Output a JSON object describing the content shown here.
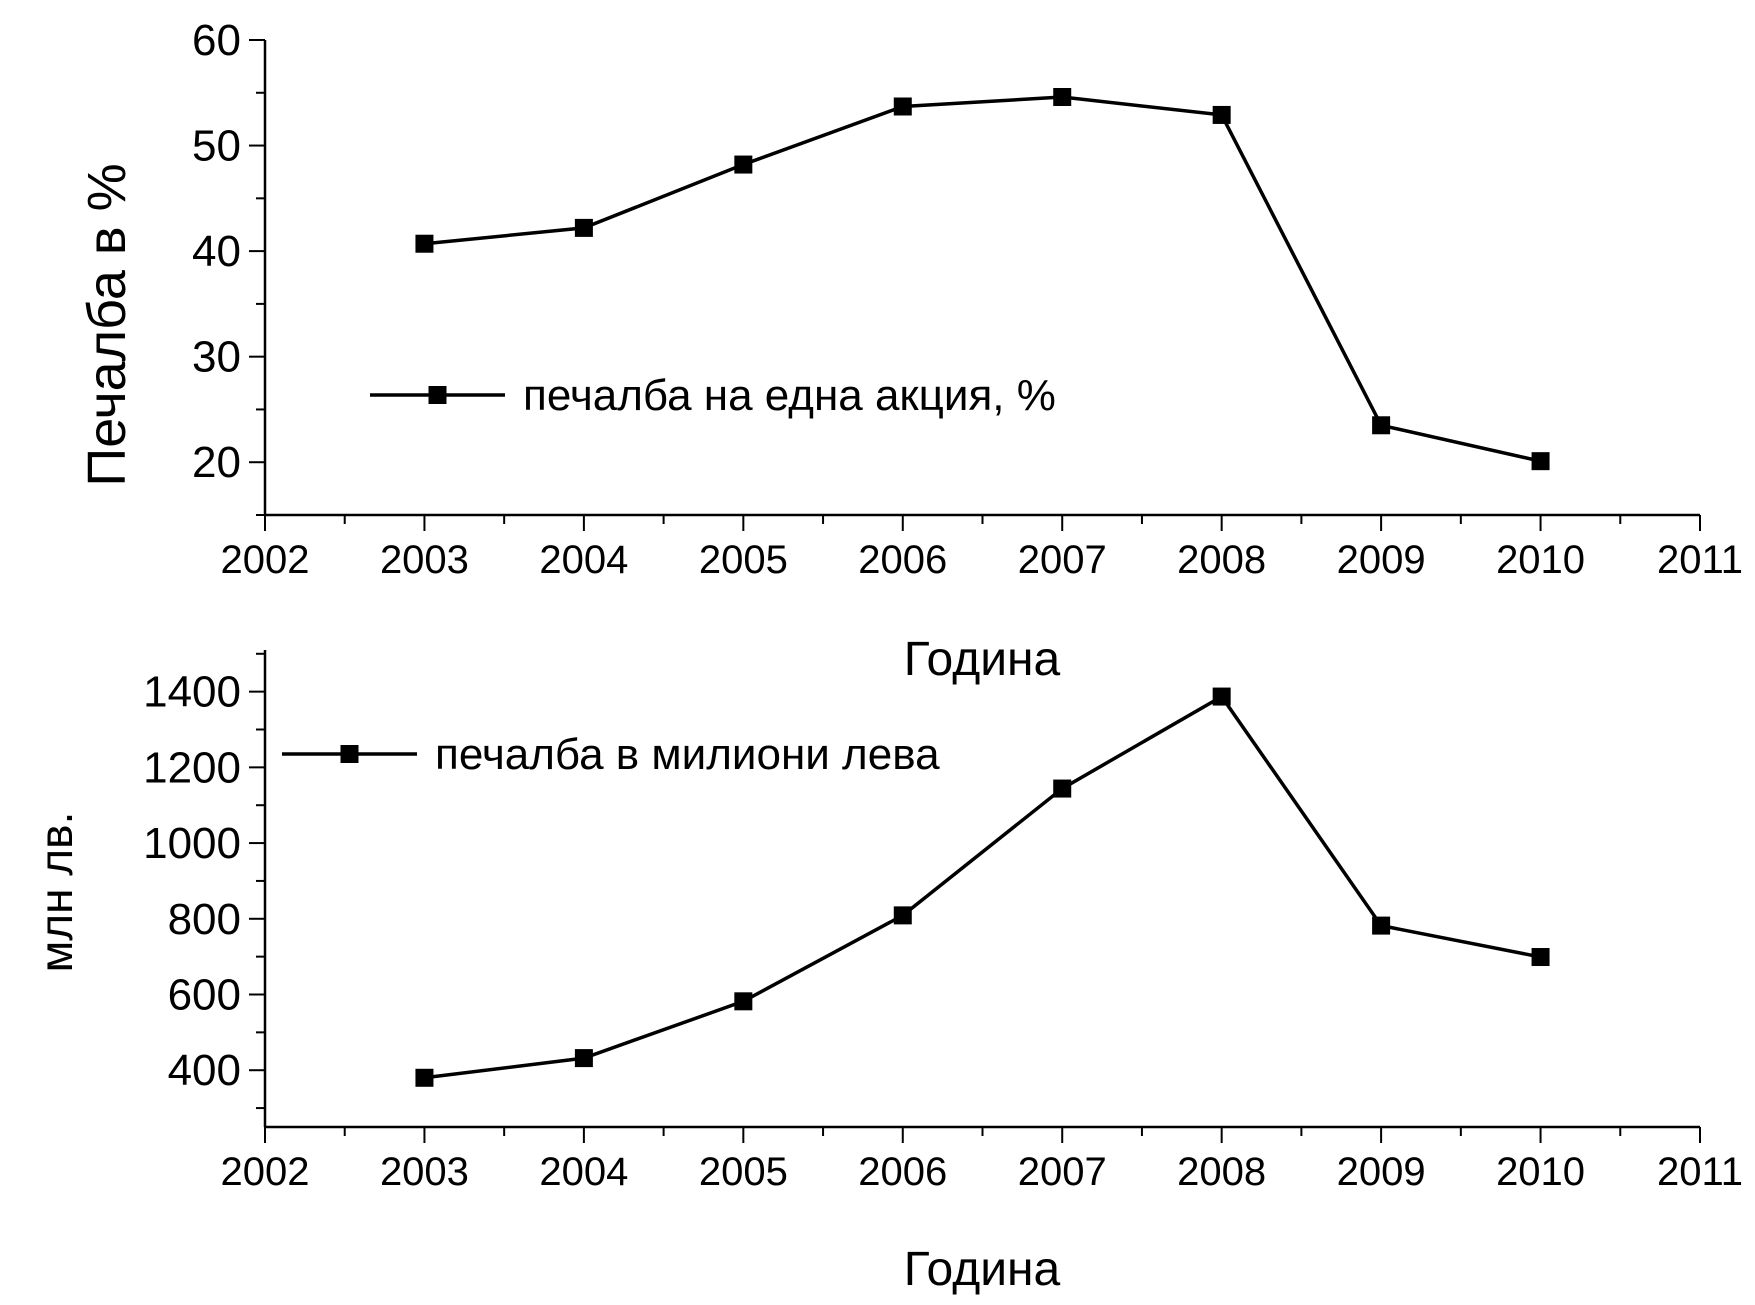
{
  "chart_data": [
    {
      "type": "line",
      "xlabel": "Година",
      "ylabel": "Печалба в %",
      "xlim": [
        2002,
        2011
      ],
      "ylim": [
        15,
        60
      ],
      "x_ticks": [
        2002,
        2003,
        2004,
        2005,
        2006,
        2007,
        2008,
        2009,
        2010,
        2011
      ],
      "y_ticks": [
        20,
        30,
        40,
        50,
        60
      ],
      "series": [
        {
          "name": "печалба на една акция, %",
          "x": [
            2003,
            2004,
            2005,
            2006,
            2007,
            2008,
            2009,
            2010
          ],
          "values": [
            40.7,
            42.2,
            48.2,
            53.7,
            54.6,
            52.9,
            23.5,
            20.1
          ]
        }
      ],
      "legend": "center-left",
      "grid": false
    },
    {
      "type": "line",
      "xlabel": "Година",
      "ylabel": "млн лв.",
      "xlim": [
        2002,
        2011
      ],
      "ylim": [
        250,
        1510
      ],
      "x_ticks": [
        2002,
        2003,
        2004,
        2005,
        2006,
        2007,
        2008,
        2009,
        2010,
        2011
      ],
      "y_ticks": [
        400,
        600,
        800,
        1000,
        1200,
        1400
      ],
      "series": [
        {
          "name": "печалба в милиони лева",
          "x": [
            2003,
            2004,
            2005,
            2006,
            2007,
            2008,
            2009,
            2010
          ],
          "values": [
            380,
            432,
            582,
            809,
            1144,
            1387,
            782,
            699
          ]
        }
      ],
      "legend": "top-left",
      "grid": false
    }
  ]
}
